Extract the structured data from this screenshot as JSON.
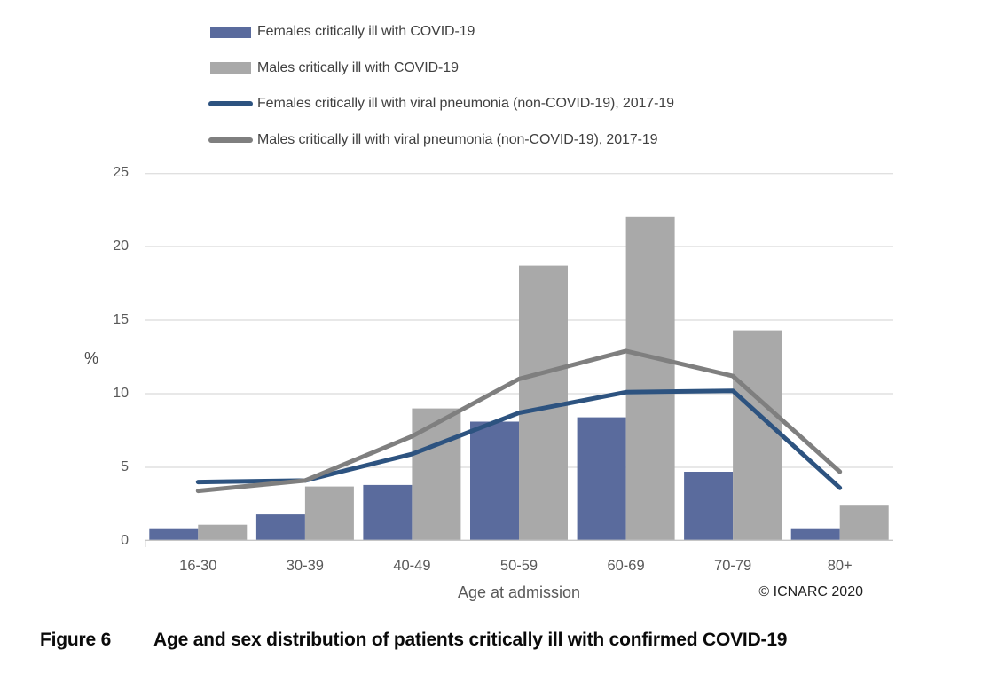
{
  "figure": {
    "caption_label": "Figure 6",
    "caption_text": "Age and sex distribution of patients critically ill with confirmed COVID-19",
    "copyright": "© ICNARC 2020"
  },
  "chart_data": {
    "type": "bar",
    "subtype": "combo-bar-line",
    "title": "",
    "xlabel": "Age at admission",
    "ylabel": "%",
    "categories": [
      "16-30",
      "30-39",
      "40-49",
      "50-59",
      "60-69",
      "70-79",
      "80+"
    ],
    "series": [
      {
        "name": "Females critically ill with COVID-19",
        "type": "bar",
        "color": "#5a6b9d",
        "values": [
          0.8,
          1.8,
          3.8,
          8.1,
          8.4,
          4.7,
          0.8
        ]
      },
      {
        "name": "Males critically ill with COVID-19",
        "type": "bar",
        "color": "#a9a9a9",
        "values": [
          1.1,
          3.7,
          9.0,
          18.7,
          22.0,
          14.3,
          2.4
        ]
      },
      {
        "name": "Females critically ill with viral pneumonia (non-COVID-19), 2017-19",
        "type": "line",
        "color": "#2d5380",
        "values": [
          4.0,
          4.1,
          5.9,
          8.7,
          10.1,
          10.2,
          3.6
        ]
      },
      {
        "name": "Males critically ill with viral pneumonia (non-COVID-19), 2017-19",
        "type": "line",
        "color": "#7f7f7f",
        "values": [
          3.4,
          4.1,
          7.1,
          11.0,
          12.9,
          11.2,
          4.7
        ]
      }
    ],
    "ylim": [
      0,
      25
    ],
    "yticks": [
      0,
      5,
      10,
      15,
      20,
      25
    ],
    "grid": true,
    "legend_position": "top-left",
    "colors": {
      "gridline": "#e0e0e0",
      "axis": "#c6c6c6",
      "tick_text": "#595959",
      "legend_text": "#404040"
    }
  }
}
